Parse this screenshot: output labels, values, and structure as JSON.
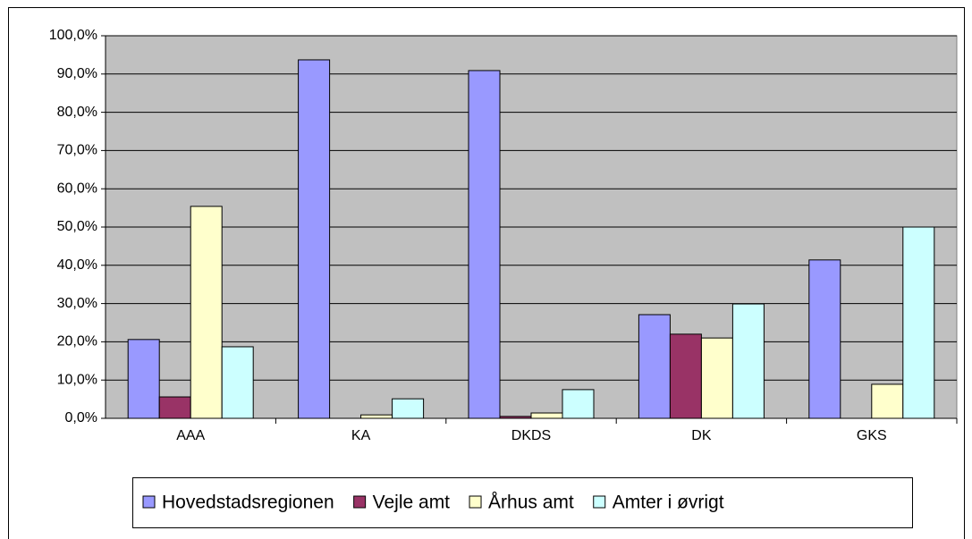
{
  "chart_data": {
    "type": "bar",
    "categories": [
      "AAA",
      "KA",
      "DKDS",
      "DK",
      "GKS"
    ],
    "series": [
      {
        "name": "Hovedstadsregionen",
        "color": "#9999ff",
        "values": [
          20.6,
          93.7,
          90.9,
          27.1,
          41.4
        ]
      },
      {
        "name": "Vejle amt",
        "color": "#993366",
        "values": [
          5.6,
          0,
          0.5,
          22.0,
          0
        ]
      },
      {
        "name": "Århus amt",
        "color": "#ffffcc",
        "values": [
          55.4,
          0.9,
          1.4,
          21.0,
          8.9
        ]
      },
      {
        "name": "Amter i øvrigt",
        "color": "#ccffff",
        "values": [
          18.7,
          5.1,
          7.5,
          29.9,
          50.0
        ]
      }
    ],
    "ylim": [
      0,
      100
    ],
    "yticks": [
      {
        "value": 0,
        "label": "0,0%"
      },
      {
        "value": 10,
        "label": "10,0%"
      },
      {
        "value": 20,
        "label": "20,0%"
      },
      {
        "value": 30,
        "label": "30,0%"
      },
      {
        "value": 40,
        "label": "40,0%"
      },
      {
        "value": 50,
        "label": "50,0%"
      },
      {
        "value": 60,
        "label": "60,0%"
      },
      {
        "value": 70,
        "label": "70,0%"
      },
      {
        "value": 80,
        "label": "80,0%"
      },
      {
        "value": 90,
        "label": "90,0%"
      },
      {
        "value": 100,
        "label": "100,0%"
      }
    ],
    "grid": true,
    "legend": "bottom",
    "plot_background": "#c0c0c0"
  }
}
